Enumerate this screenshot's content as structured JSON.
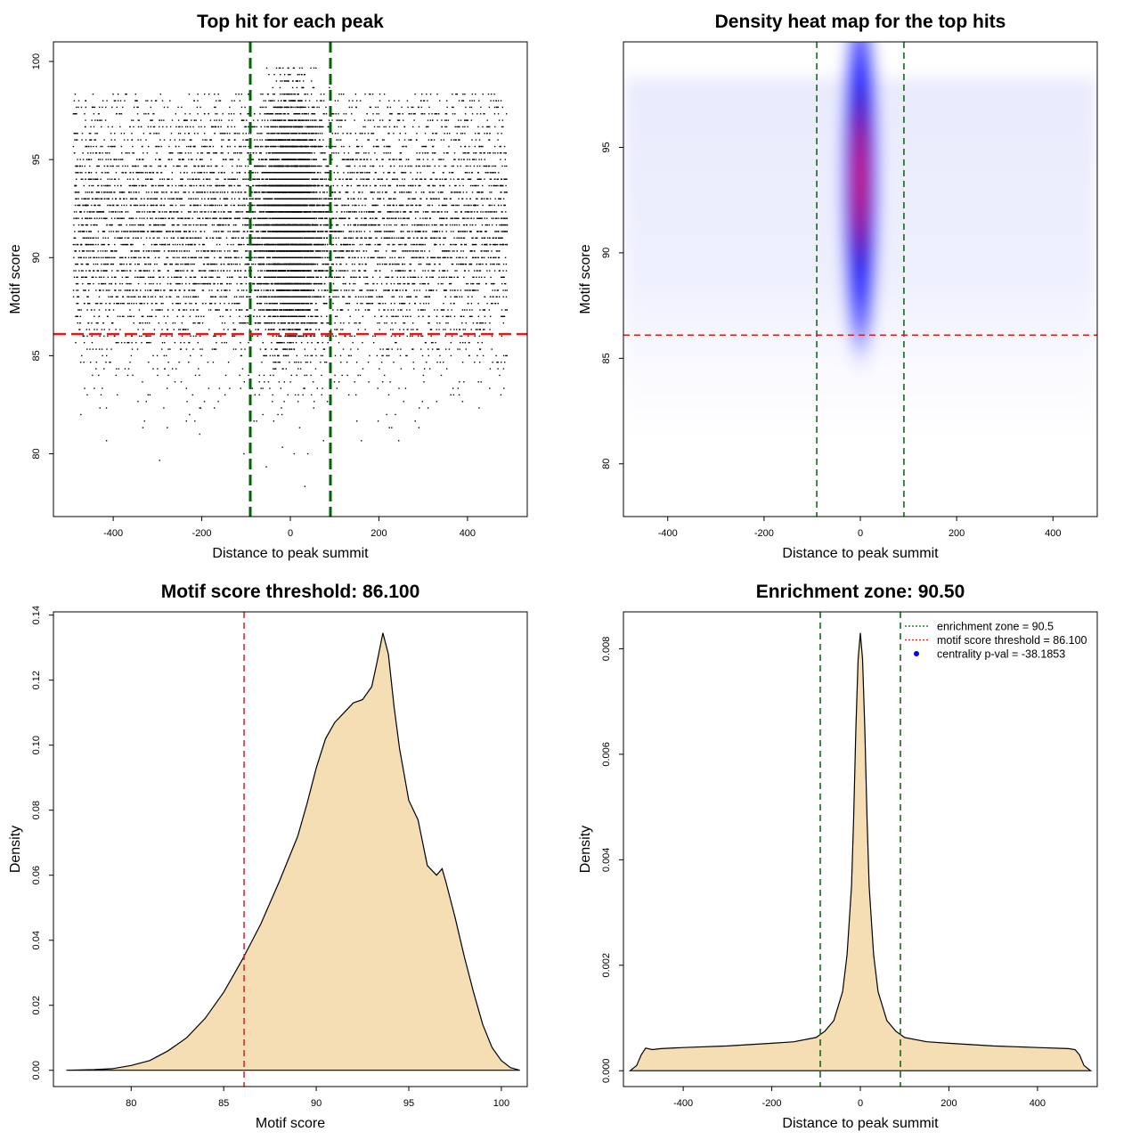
{
  "colors": {
    "scatter_point": "#000000",
    "zone_line": "#006400",
    "threshold_line": "#e31a1c",
    "density_fill": "#f5deb3",
    "heat_low": "#ffffff",
    "heat_mid": "#0000ff",
    "heat_high": "#ff0000"
  },
  "chart_data": [
    {
      "type": "scatter",
      "title": "Top hit for each peak",
      "xlabel": "Distance to peak summit",
      "ylabel": "Motif score",
      "xlim": [
        -535,
        535
      ],
      "ylim": [
        76.8,
        101.0
      ],
      "xticks": [
        -400,
        -200,
        0,
        200,
        400
      ],
      "yticks": [
        80,
        85,
        90,
        95,
        100
      ],
      "xtick_labels": [
        "-400",
        "-200",
        "0",
        "200",
        "400"
      ],
      "ytick_labels": [
        "80",
        "85",
        "90",
        "95",
        "100"
      ],
      "grid": false,
      "distribution": {
        "x_range": [
          -490,
          490
        ],
        "central_cluster": {
          "x_center": 0,
          "x_sd": 35,
          "y_center": 92,
          "y_sd": 3,
          "y_max": 99.8
        },
        "background_y_center": 91.5,
        "background_y_sd": 3.5
      },
      "vertical_lines": [
        {
          "x": -90.5,
          "style": "dashed",
          "color": "zone"
        },
        {
          "x": 90.5,
          "style": "dashed",
          "color": "zone"
        }
      ],
      "horizontal_lines": [
        {
          "y": 86.1,
          "style": "dashed",
          "color": "threshold"
        }
      ]
    },
    {
      "type": "heatmap",
      "title": "Density heat map for the top hits",
      "xlabel": "Distance to peak summit",
      "ylabel": "Motif score",
      "xlim": [
        -492,
        492
      ],
      "ylim": [
        77.5,
        100.0
      ],
      "xticks": [
        -400,
        -200,
        0,
        200,
        400
      ],
      "yticks": [
        80,
        85,
        90,
        95
      ],
      "xtick_labels": [
        "-400",
        "-200",
        "0",
        "200",
        "400"
      ],
      "ytick_labels": [
        "80",
        "85",
        "90",
        "95"
      ],
      "grid": false,
      "density_peak": {
        "x": 0,
        "y": 93.5,
        "x_spread": 22,
        "y_spread": 2.5
      },
      "vertical_lines": [
        {
          "x": -90.5,
          "style": "dashed",
          "color": "zone"
        },
        {
          "x": 90.5,
          "style": "dashed",
          "color": "zone"
        }
      ],
      "horizontal_lines": [
        {
          "y": 86.1,
          "style": "dashed",
          "color": "threshold"
        }
      ]
    },
    {
      "type": "area",
      "title": "Motif score threshold: 86.100",
      "xlabel": "Motif score",
      "ylabel": "Density",
      "xlim": [
        75.8,
        101.4
      ],
      "ylim": [
        -0.005,
        0.141
      ],
      "xticks": [
        80,
        85,
        90,
        95,
        100
      ],
      "yticks": [
        0.0,
        0.02,
        0.04,
        0.06,
        0.08,
        0.1,
        0.12,
        0.14
      ],
      "xtick_labels": [
        "80",
        "85",
        "90",
        "95",
        "100"
      ],
      "ytick_labels": [
        "0.00",
        "0.02",
        "0.04",
        "0.06",
        "0.08",
        "0.10",
        "0.12",
        "0.14"
      ],
      "grid": false,
      "x": [
        76.5,
        78,
        79,
        80,
        81,
        82,
        83,
        84,
        85,
        86,
        87,
        88,
        89,
        89.5,
        90,
        90.5,
        91,
        91.5,
        92,
        92.5,
        93,
        93.3,
        93.6,
        93.9,
        94.2,
        94.5,
        95,
        95.5,
        96,
        96.5,
        96.8,
        97,
        97.5,
        98,
        98.5,
        99,
        99.5,
        100,
        100.5,
        101
      ],
      "y": [
        0,
        0.0002,
        0.0005,
        0.0015,
        0.003,
        0.006,
        0.01,
        0.016,
        0.024,
        0.034,
        0.045,
        0.058,
        0.072,
        0.082,
        0.093,
        0.102,
        0.107,
        0.11,
        0.113,
        0.114,
        0.118,
        0.126,
        0.1345,
        0.128,
        0.112,
        0.099,
        0.083,
        0.077,
        0.063,
        0.06,
        0.062,
        0.058,
        0.047,
        0.035,
        0.024,
        0.014,
        0.007,
        0.003,
        0.0008,
        0
      ],
      "vertical_lines": [
        {
          "x": 86.1,
          "style": "dashed",
          "color": "threshold"
        }
      ]
    },
    {
      "type": "area",
      "title": "Enrichment zone: 90.50",
      "xlabel": "Distance to peak summit",
      "ylabel": "Density",
      "xlim": [
        -535,
        535
      ],
      "ylim": [
        -0.0003,
        0.0087
      ],
      "xticks": [
        -400,
        -200,
        0,
        200,
        400
      ],
      "yticks": [
        0.0,
        0.002,
        0.004,
        0.006,
        0.008
      ],
      "xtick_labels": [
        "-400",
        "-200",
        "0",
        "200",
        "400"
      ],
      "ytick_labels": [
        "0.000",
        "0.002",
        "0.004",
        "0.006",
        "0.008"
      ],
      "grid": false,
      "x": [
        -520,
        -505,
        -495,
        -485,
        -470,
        -450,
        -400,
        -300,
        -200,
        -150,
        -100,
        -80,
        -60,
        -40,
        -30,
        -20,
        -15,
        -10,
        -5,
        0,
        5,
        10,
        15,
        20,
        30,
        40,
        60,
        80,
        100,
        150,
        200,
        300,
        400,
        470,
        485,
        495,
        505,
        520
      ],
      "y": [
        0,
        0.0001,
        0.0003,
        0.00043,
        0.0004,
        0.00042,
        0.00044,
        0.00047,
        0.00052,
        0.00055,
        0.00063,
        0.00075,
        0.00095,
        0.0015,
        0.0022,
        0.0035,
        0.0048,
        0.0065,
        0.0078,
        0.0083,
        0.0078,
        0.0065,
        0.0048,
        0.0035,
        0.0022,
        0.0015,
        0.00095,
        0.00075,
        0.00063,
        0.00055,
        0.00052,
        0.00047,
        0.00044,
        0.00042,
        0.0004,
        0.0003,
        0.0001,
        0
      ],
      "vertical_lines": [
        {
          "x": -90.5,
          "style": "dashed",
          "color": "zone"
        },
        {
          "x": 90.5,
          "style": "dashed",
          "color": "zone"
        }
      ],
      "legend": {
        "position": "top-right",
        "entries": [
          {
            "label": "enrichment zone = 90.5",
            "style": "dotted-line",
            "color": "zone"
          },
          {
            "label": "motif score threshold = 86.100",
            "style": "dotted-line",
            "color": "threshold"
          },
          {
            "label": "centrality p-val = -38.1853",
            "style": "point",
            "color": "#0000ff"
          }
        ]
      }
    }
  ]
}
